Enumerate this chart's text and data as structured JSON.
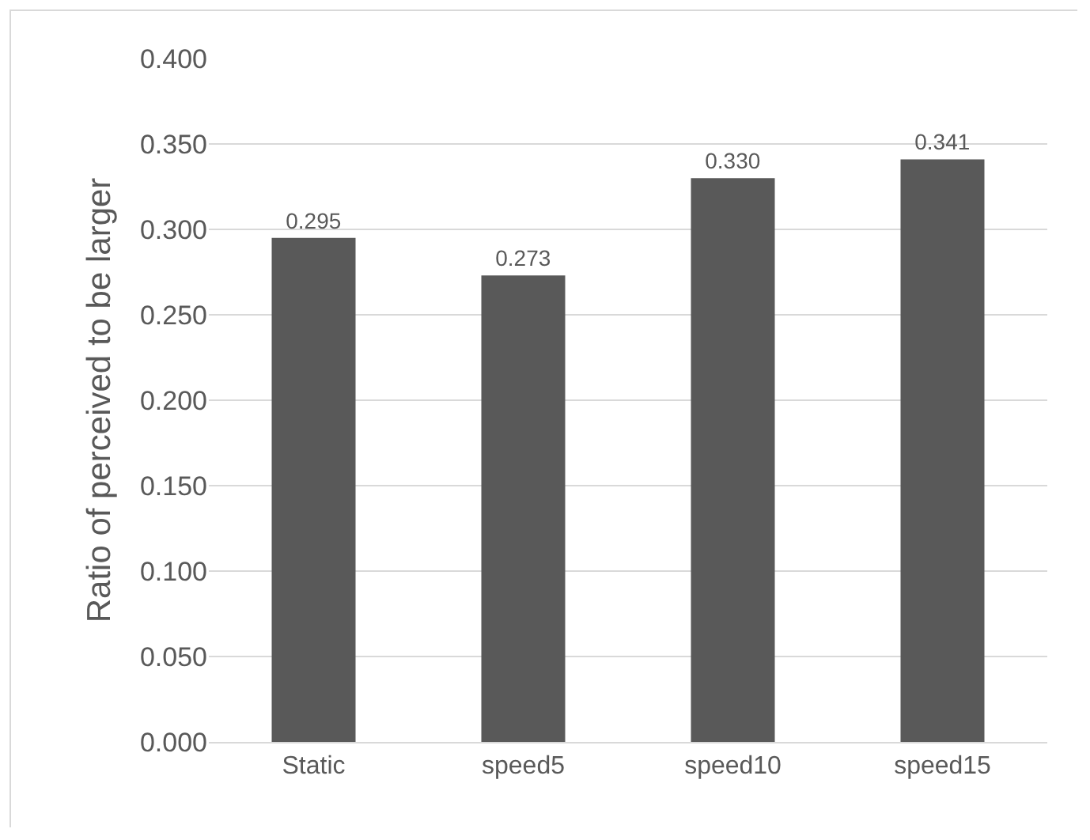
{
  "chart_data": {
    "type": "bar",
    "ylabel": "Ratio of perceived to be larger",
    "categories": [
      "Static",
      "speed5",
      "speed10",
      "speed15"
    ],
    "values": [
      0.295,
      0.273,
      0.33,
      0.341
    ],
    "value_labels": [
      "0.295",
      "0.273",
      "0.330",
      "0.341"
    ],
    "color": "#595959",
    "ylim": [
      0,
      0.4
    ],
    "yticks": [
      {
        "value": 0,
        "label": "0.000"
      },
      {
        "value": 0.05,
        "label": "0.050"
      },
      {
        "value": 0.1,
        "label": "0.100"
      },
      {
        "value": 0.15,
        "label": "0.150"
      },
      {
        "value": 0.2,
        "label": "0.200"
      },
      {
        "value": 0.25,
        "label": "0.250"
      },
      {
        "value": 0.3,
        "label": "0.300"
      },
      {
        "value": 0.35,
        "label": "0.350"
      },
      {
        "value": 0.4,
        "label": "0.400"
      }
    ],
    "grid": "y"
  }
}
